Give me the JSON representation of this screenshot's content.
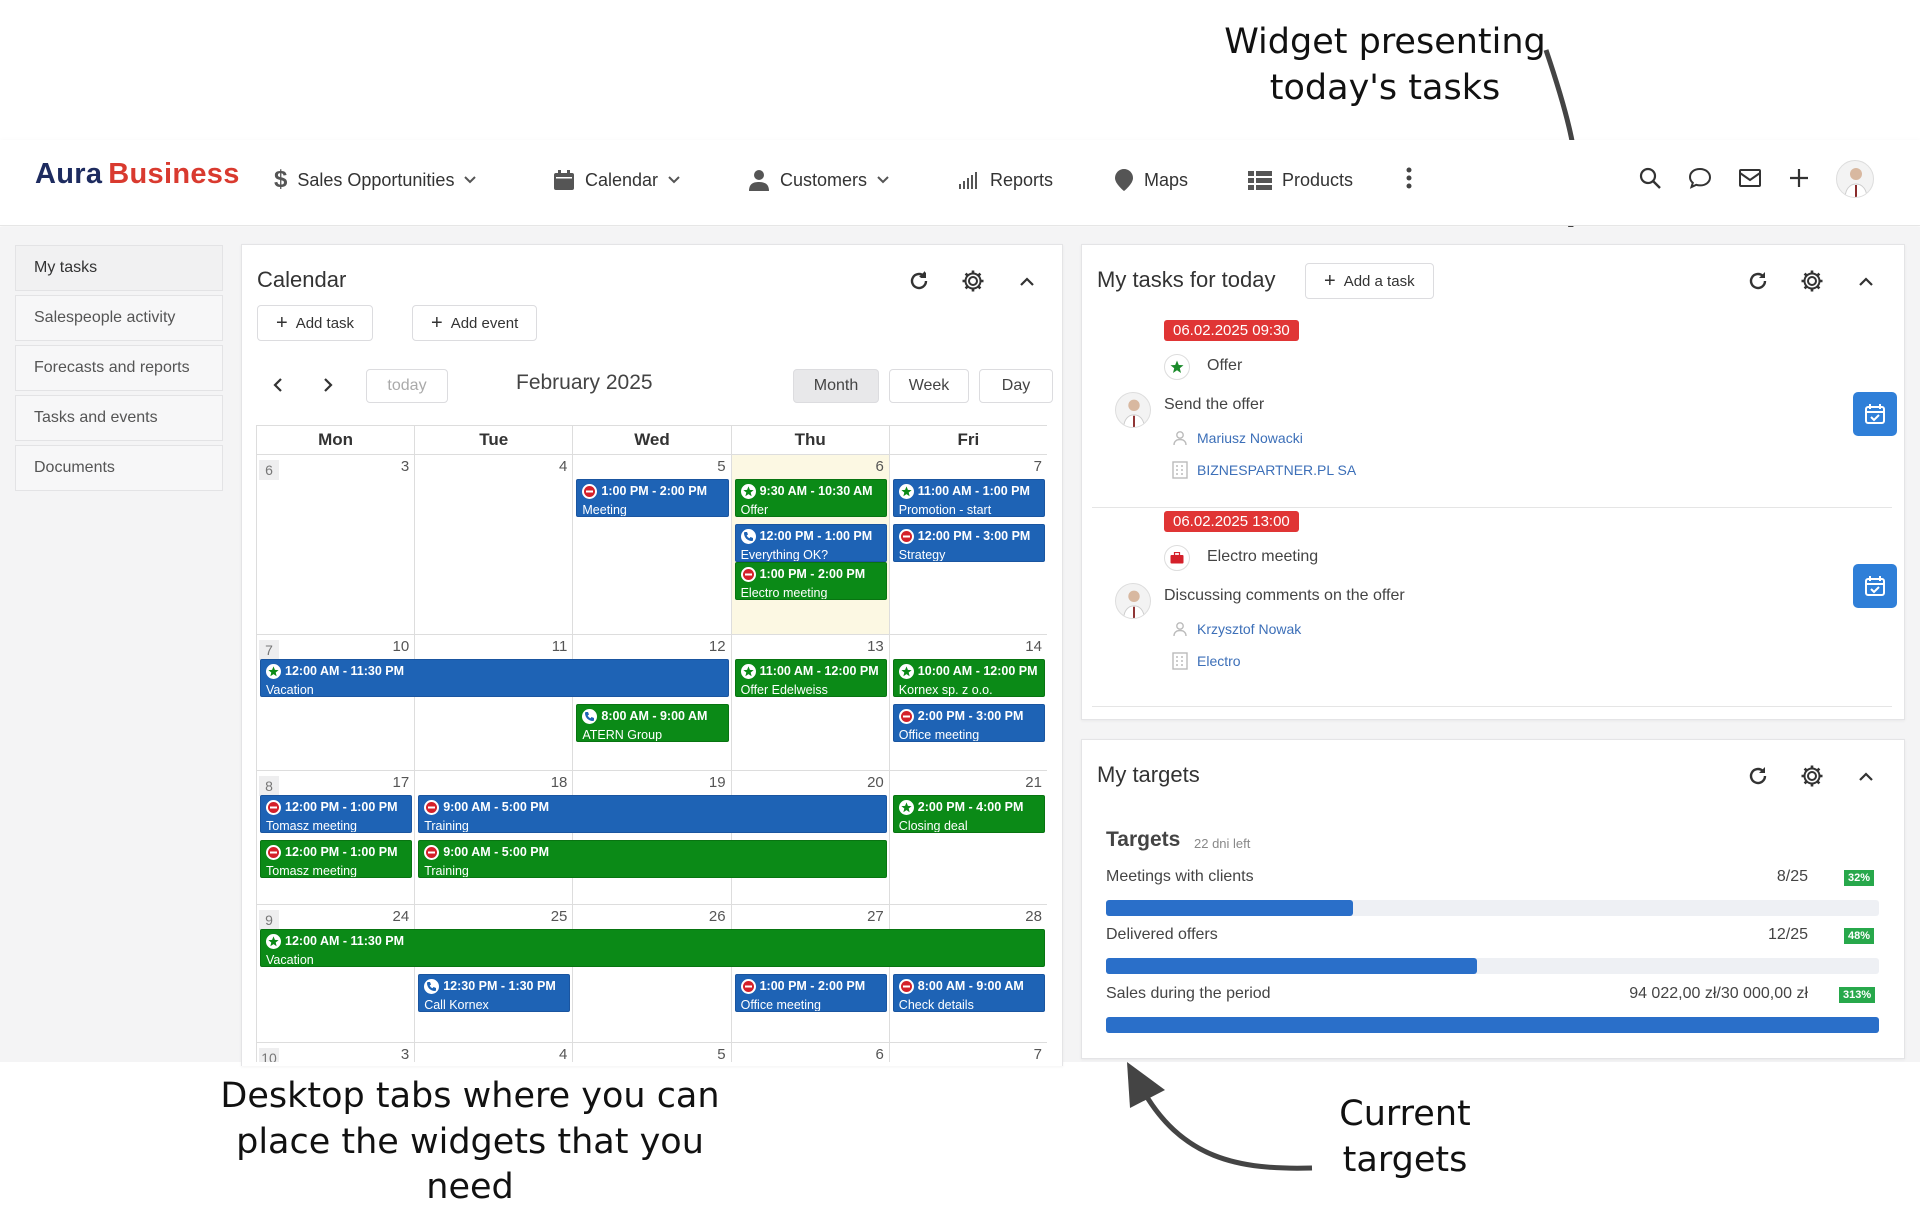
{
  "annotations": {
    "top_right": [
      "Widget presenting",
      "today's tasks"
    ],
    "bottom_left": [
      "Desktop tabs where you can",
      "place the widgets that you need"
    ],
    "bottom_right": [
      "Current",
      "targets"
    ]
  },
  "brand": {
    "part1": "Aura",
    "part2": "Business"
  },
  "nav": [
    {
      "label": "Sales Opportunities",
      "icon": "dollar-icon",
      "dropdown": true
    },
    {
      "label": "Calendar",
      "icon": "calendar-icon",
      "dropdown": true
    },
    {
      "label": "Customers",
      "icon": "user-icon",
      "dropdown": true
    },
    {
      "label": "Reports",
      "icon": "bar-chart-icon",
      "dropdown": false
    },
    {
      "label": "Maps",
      "icon": "map-pin-icon",
      "dropdown": false
    },
    {
      "label": "Products",
      "icon": "list-icon",
      "dropdown": false
    }
  ],
  "left_tabs": [
    "My tasks",
    "Salespeople activity",
    "Forecasts and reports",
    "Tasks and events",
    "Documents"
  ],
  "calendar": {
    "title": "Calendar",
    "add_task": "Add task",
    "add_event": "Add event",
    "today": "today",
    "month_label": "February 2025",
    "views": [
      "Month",
      "Week",
      "Day"
    ],
    "active_view": "Month",
    "weekdays": [
      "Mon",
      "Tue",
      "Wed",
      "Thu",
      "Fri"
    ],
    "weeks": [
      {
        "num": "6",
        "days": [
          "3",
          "4",
          "5",
          "6",
          "7"
        ]
      },
      {
        "num": "7",
        "days": [
          "10",
          "11",
          "12",
          "13",
          "14"
        ]
      },
      {
        "num": "8",
        "days": [
          "17",
          "18",
          "19",
          "20",
          "21"
        ]
      },
      {
        "num": "9",
        "days": [
          "24",
          "25",
          "26",
          "27",
          "28"
        ]
      },
      {
        "num": "10",
        "days": [
          "3",
          "4",
          "5",
          "6",
          "7"
        ]
      }
    ],
    "events": [
      {
        "week": 0,
        "col": 2,
        "span": 1,
        "slot": 0,
        "color": "blue",
        "icon": "no-entry",
        "time": "1:00 PM - 2:00 PM",
        "name": "Meeting"
      },
      {
        "week": 0,
        "col": 3,
        "span": 1,
        "slot": 0,
        "color": "green",
        "icon": "star",
        "time": "9:30 AM - 10:30 AM",
        "name": "Offer"
      },
      {
        "week": 0,
        "col": 4,
        "span": 1,
        "slot": 0,
        "color": "blue",
        "icon": "star",
        "time": "11:00 AM - 1:00 PM",
        "name": "Promotion - start"
      },
      {
        "week": 0,
        "col": 3,
        "span": 1,
        "slot": 1,
        "color": "blue",
        "icon": "phone",
        "time": "12:00 PM - 1:00 PM",
        "name": "Everything OK?"
      },
      {
        "week": 0,
        "col": 4,
        "span": 1,
        "slot": 1,
        "color": "blue",
        "icon": "no-entry",
        "time": "12:00 PM - 3:00 PM",
        "name": "Strategy"
      },
      {
        "week": 0,
        "col": 3,
        "span": 1,
        "slot": 2,
        "color": "green",
        "icon": "no-entry",
        "time": "1:00 PM - 2:00 PM",
        "name": "Electro meeting"
      },
      {
        "week": 1,
        "col": 0,
        "span": 3,
        "slot": 0,
        "color": "blue",
        "icon": "star",
        "time": "12:00 AM - 11:30 PM",
        "name": "Vacation"
      },
      {
        "week": 1,
        "col": 3,
        "span": 1,
        "slot": 0,
        "color": "green",
        "icon": "star",
        "time": "11:00 AM - 12:00 PM",
        "name": "Offer Edelweiss"
      },
      {
        "week": 1,
        "col": 4,
        "span": 1,
        "slot": 0,
        "color": "green",
        "icon": "star",
        "time": "10:00 AM - 12:00 PM",
        "name": "Kornex sp. z o.o."
      },
      {
        "week": 1,
        "col": 2,
        "span": 1,
        "slot": 1,
        "color": "green",
        "icon": "phone",
        "time": "8:00 AM - 9:00 AM",
        "name": "ATERN Group"
      },
      {
        "week": 1,
        "col": 4,
        "span": 1,
        "slot": 1,
        "color": "blue",
        "icon": "no-entry",
        "time": "2:00 PM - 3:00 PM",
        "name": "Office meeting"
      },
      {
        "week": 2,
        "col": 0,
        "span": 1,
        "slot": 0,
        "color": "blue",
        "icon": "no-entry",
        "time": "12:00 PM - 1:00 PM",
        "name": "Tomasz meeting"
      },
      {
        "week": 2,
        "col": 1,
        "span": 3,
        "slot": 0,
        "color": "blue",
        "icon": "no-entry",
        "time": "9:00 AM - 5:00 PM",
        "name": "Training"
      },
      {
        "week": 2,
        "col": 4,
        "span": 1,
        "slot": 0,
        "color": "green",
        "icon": "star",
        "time": "2:00 PM - 4:00 PM",
        "name": "Closing deal"
      },
      {
        "week": 2,
        "col": 0,
        "span": 1,
        "slot": 1,
        "color": "green",
        "icon": "no-entry",
        "time": "12:00 PM - 1:00 PM",
        "name": "Tomasz meeting"
      },
      {
        "week": 2,
        "col": 1,
        "span": 3,
        "slot": 1,
        "color": "green",
        "icon": "no-entry",
        "time": "9:00 AM - 5:00 PM",
        "name": "Training"
      },
      {
        "week": 3,
        "col": 0,
        "span": 5,
        "slot": 0,
        "color": "green",
        "icon": "star",
        "time": "12:00 AM - 11:30 PM",
        "name": "Vacation"
      },
      {
        "week": 3,
        "col": 1,
        "span": 1,
        "slot": 1,
        "color": "blue",
        "icon": "phone",
        "time": "12:30 PM - 1:30 PM",
        "name": "Call Kornex"
      },
      {
        "week": 3,
        "col": 3,
        "span": 1,
        "slot": 1,
        "color": "blue",
        "icon": "no-entry",
        "time": "1:00 PM - 2:00 PM",
        "name": "Office meeting"
      },
      {
        "week": 3,
        "col": 4,
        "span": 1,
        "slot": 1,
        "color": "blue",
        "icon": "no-entry",
        "time": "8:00 AM - 9:00 AM",
        "name": "Check details"
      }
    ]
  },
  "tasks": {
    "title": "My tasks for today",
    "add_button": "Add a task",
    "items": [
      {
        "date": "06.02.2025 09:30",
        "type": "Offer",
        "type_icon": "star-icon",
        "description": "Send the offer",
        "person": "Mariusz Nowacki",
        "company": "BIZNESPARTNER.PL SA"
      },
      {
        "date": "06.02.2025 13:00",
        "type": "Electro meeting",
        "type_icon": "briefcase-icon",
        "description": "Discussing comments on the offer",
        "person": "Krzysztof Nowak",
        "company": "Electro"
      }
    ]
  },
  "targets": {
    "title": "My targets",
    "heading": "Targets",
    "days_left": "22 dni left",
    "items": [
      {
        "label": "Meetings with clients",
        "value": "8/25",
        "pct": "32%",
        "fraction": 0.32
      },
      {
        "label": "Delivered offers",
        "value": "12/25",
        "pct": "48%",
        "fraction": 0.48
      },
      {
        "label": "Sales during the period",
        "value": "94 022,00 zł/30 000,00 zł",
        "pct": "313%",
        "fraction": 1.0
      }
    ]
  },
  "colors": {
    "accent_blue": "#1e63b5",
    "accent_green": "#0b8a17",
    "brand_red": "#d93a2f",
    "brand_navy": "#1d2b5f",
    "badge_red": "#e03535"
  }
}
